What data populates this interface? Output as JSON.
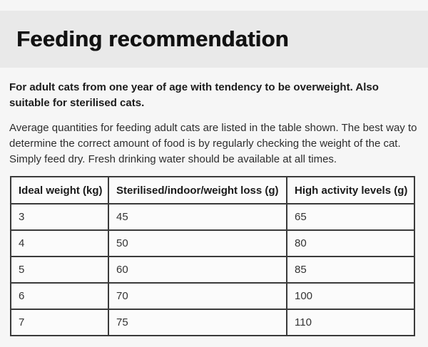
{
  "page": {
    "background_color": "#f6f6f6"
  },
  "header": {
    "title": "Feeding recommendation",
    "background_color": "#e9e9e9"
  },
  "intro": {
    "bold_text": "For adult cats from one year of age with tendency to be overweight. Also suitable for sterilised cats.",
    "body_text": "Average quantities for feeding adult cats are listed in the table shown. The best way to determine the correct amount of food is by regularly checking the weight of the cat. Simply feed dry. Fresh drinking water should be available at all times."
  },
  "table": {
    "border_color": "#3a3a3a",
    "columns": [
      "Ideal weight (kg)",
      "Sterilised/indoor/weight loss (g)",
      "High activity levels (g)"
    ],
    "rows": [
      [
        "3",
        "45",
        "65"
      ],
      [
        "4",
        "50",
        "80"
      ],
      [
        "5",
        "60",
        "85"
      ],
      [
        "6",
        "70",
        "100"
      ],
      [
        "7",
        "75",
        "110"
      ]
    ]
  }
}
